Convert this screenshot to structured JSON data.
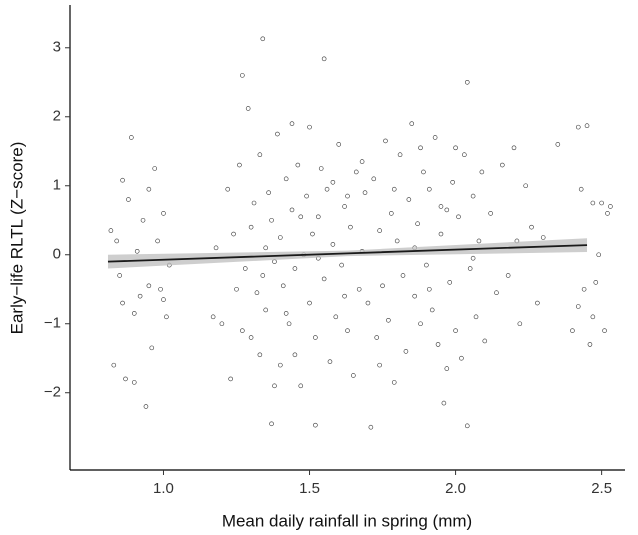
{
  "chart_data": {
    "type": "scatter",
    "x_label": "Mean daily rainfall in spring (mm)",
    "y_label": "Early−life RLTL (Z−score)",
    "x": [
      0.82,
      0.83,
      0.85,
      0.86,
      0.87,
      0.88,
      0.89,
      0.9,
      0.91,
      0.92,
      0.93,
      0.94,
      0.95,
      0.96,
      0.97,
      0.98,
      0.99,
      1.0,
      1.01,
      1.02,
      0.86,
      0.84,
      0.9,
      0.95,
      1.0,
      1.17,
      1.18,
      1.2,
      1.22,
      1.23,
      1.24,
      1.25,
      1.26,
      1.27,
      1.28,
      1.29,
      1.3,
      1.3,
      1.31,
      1.32,
      1.33,
      1.33,
      1.34,
      1.35,
      1.35,
      1.36,
      1.37,
      1.37,
      1.38,
      1.39,
      1.4,
      1.4,
      1.41,
      1.42,
      1.43,
      1.44,
      1.45,
      1.45,
      1.46,
      1.47,
      1.48,
      1.49,
      1.5,
      1.5,
      1.51,
      1.52,
      1.52,
      1.53,
      1.54,
      1.55,
      1.55,
      1.56,
      1.57,
      1.58,
      1.59,
      1.6,
      1.61,
      1.62,
      1.63,
      1.64,
      1.65,
      1.66,
      1.67,
      1.68,
      1.69,
      1.7,
      1.71,
      1.72,
      1.73,
      1.74,
      1.75,
      1.76,
      1.77,
      1.78,
      1.79,
      1.8,
      1.81,
      1.82,
      1.83,
      1.84,
      1.85,
      1.86,
      1.87,
      1.88,
      1.89,
      1.9,
      1.91,
      1.92,
      1.93,
      1.94,
      1.95,
      1.96,
      1.97,
      1.98,
      1.99,
      2.0,
      2.01,
      2.02,
      2.03,
      2.04,
      2.04,
      2.05,
      2.06,
      2.07,
      2.08,
      2.09,
      2.1,
      1.27,
      1.34,
      1.42,
      1.47,
      1.53,
      1.58,
      1.62,
      1.68,
      1.74,
      1.79,
      1.86,
      1.91,
      1.97,
      2.0,
      2.06,
      1.44,
      1.38,
      1.63,
      1.88,
      1.95,
      2.12,
      2.14,
      2.16,
      2.18,
      2.2,
      2.21,
      2.22,
      2.24,
      2.26,
      2.28,
      2.3,
      2.35,
      2.4,
      2.42,
      2.43,
      2.44,
      2.45,
      2.46,
      2.47,
      2.48,
      2.49,
      2.5,
      2.51,
      2.52,
      2.53,
      2.42,
      2.47
    ],
    "values": [
      0.35,
      -1.6,
      -0.3,
      1.08,
      -1.8,
      0.8,
      1.7,
      -0.85,
      0.05,
      -0.6,
      0.5,
      -2.2,
      0.95,
      -1.35,
      1.25,
      0.2,
      -0.5,
      0.6,
      -0.9,
      -0.15,
      -0.7,
      0.2,
      -1.85,
      -0.45,
      -0.65,
      -0.9,
      0.1,
      -1.0,
      0.95,
      -1.8,
      0.3,
      -0.5,
      1.3,
      2.6,
      -0.2,
      2.12,
      0.4,
      -1.2,
      0.75,
      -0.55,
      1.45,
      -1.45,
      3.13,
      0.1,
      -0.8,
      0.9,
      -2.45,
      0.5,
      -0.1,
      1.75,
      -1.6,
      0.25,
      -0.45,
      1.1,
      -1.0,
      0.65,
      -1.45,
      -0.2,
      1.3,
      -1.9,
      0.0,
      0.85,
      1.85,
      -0.7,
      0.3,
      -2.47,
      -1.2,
      0.55,
      1.25,
      2.84,
      -0.35,
      0.95,
      -1.55,
      0.15,
      -0.9,
      1.6,
      -0.15,
      0.7,
      -1.1,
      0.4,
      -1.75,
      1.2,
      -0.5,
      0.05,
      0.9,
      -0.7,
      -2.5,
      1.1,
      -1.2,
      0.35,
      -0.45,
      1.65,
      -0.95,
      0.6,
      -1.85,
      0.2,
      1.45,
      -0.3,
      -1.4,
      0.8,
      1.9,
      -0.6,
      0.45,
      -1.0,
      1.2,
      -0.15,
      0.95,
      -0.8,
      1.7,
      -1.3,
      0.3,
      -2.15,
      0.65,
      -0.4,
      1.05,
      -1.1,
      0.55,
      -1.5,
      1.45,
      2.5,
      -2.48,
      -0.2,
      0.85,
      -0.9,
      0.2,
      1.2,
      -1.25,
      -1.1,
      -0.3,
      -0.85,
      0.55,
      -0.05,
      1.05,
      -0.6,
      1.35,
      -1.6,
      0.95,
      0.1,
      -0.5,
      -1.65,
      1.55,
      -0.05,
      1.9,
      -1.9,
      0.85,
      1.55,
      0.7,
      0.6,
      -0.55,
      1.3,
      -0.3,
      1.55,
      0.2,
      -1.0,
      1.0,
      0.4,
      -0.7,
      0.25,
      1.6,
      -1.1,
      1.85,
      0.95,
      -0.5,
      1.87,
      -1.3,
      0.75,
      -0.4,
      0.0,
      0.75,
      -1.1,
      0.6,
      0.7,
      -0.75,
      -0.9
    ],
    "color": "#333333",
    "fit": {
      "x": [
        0.81,
        1.63,
        2.45
      ],
      "values": [
        -0.1,
        0.02,
        0.14
      ],
      "band_lower": [
        -0.2,
        -0.02,
        0.04
      ],
      "band_upper": [
        0.0,
        0.06,
        0.24
      ],
      "color": "#1a1a1a",
      "band_color": "#bdbdbd"
    },
    "xlim": [
      0.68,
      2.58
    ],
    "ylim": [
      -3.12,
      3.62
    ],
    "xticks": [
      {
        "value": 1,
        "label": "1.0"
      },
      1.5,
      {
        "value": 2,
        "label": "2.0"
      },
      2.5
    ],
    "yticks": [
      {
        "value": -2,
        "label": "−2"
      },
      {
        "value": -1,
        "label": "−1"
      },
      0,
      1,
      2,
      3
    ],
    "grid": false
  }
}
